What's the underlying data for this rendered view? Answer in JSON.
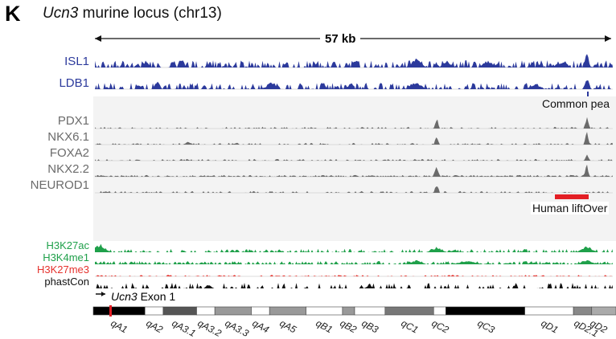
{
  "panel_letter": "K",
  "title": {
    "gene": "Ucn3",
    "rest": "murine locus (chr13)"
  },
  "scale_bar": {
    "label": "57 kb"
  },
  "tracks": {
    "group1": [
      {
        "id": "isl1",
        "label": "ISL1",
        "color": "#2c3a9c"
      },
      {
        "id": "ldb1",
        "label": "LDB1",
        "color": "#2c3a9c"
      }
    ],
    "group2": [
      {
        "id": "pdx1",
        "label": "PDX1",
        "color": "#6b6b6b"
      },
      {
        "id": "nkx61",
        "label": "NKX6.1",
        "color": "#6b6b6b"
      },
      {
        "id": "foxa2",
        "label": "FOXA2",
        "color": "#6b6b6b"
      },
      {
        "id": "nkx22",
        "label": "NKX2.2",
        "color": "#6b6b6b"
      },
      {
        "id": "neurod1",
        "label": "NEUROD1",
        "color": "#6b6b6b"
      }
    ],
    "group3": [
      {
        "id": "h3k27ac",
        "label": "H3K27ac",
        "color": "#1fa04a"
      },
      {
        "id": "h3k4me1",
        "label": "H3K4me1",
        "color": "#1fa04a"
      },
      {
        "id": "h3k27me3",
        "label": "H3K27me3",
        "color": "#e5322d"
      },
      {
        "id": "phastcon",
        "label": "phastCon",
        "color": "#111111"
      }
    ]
  },
  "annotations": {
    "common_peak": "Common pea",
    "human_liftover": "Human liftOver",
    "exon": {
      "gene": "Ucn3",
      "rest": "Exon 1"
    }
  },
  "colors": {
    "liftover_bar": "#e31e24",
    "exon_marker": "#e31e24"
  },
  "bands": [
    "qA1",
    "qA2",
    "qA3.1",
    "qA3.2",
    "qA3.3",
    "qA4",
    "qA5",
    "qB1",
    "qB2",
    "qB3",
    "qC1",
    "qC2",
    "qC3",
    "qD1",
    "qD2.1",
    "qD2"
  ]
}
